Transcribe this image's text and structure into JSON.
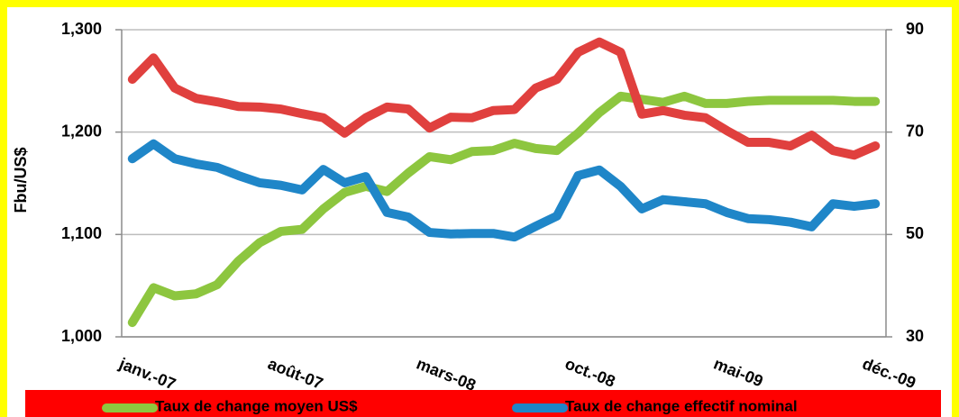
{
  "chart_data": {
    "type": "line",
    "y_label": "Fbu/US$",
    "categories": [
      "janv.-07",
      null,
      null,
      null,
      null,
      null,
      null,
      "août-07",
      null,
      null,
      null,
      null,
      null,
      null,
      "mars-08",
      null,
      null,
      null,
      null,
      null,
      null,
      "oct.-08",
      null,
      null,
      null,
      null,
      null,
      null,
      "mai-09",
      null,
      null,
      null,
      null,
      null,
      null,
      "déc.-09"
    ],
    "series": [
      {
        "name": "Taux de change moyen US$",
        "color": "#8dc63f",
        "axis": "y",
        "values": [
          1014,
          1048,
          1040,
          1042,
          1051,
          1074,
          1092,
          1103,
          1105,
          1125,
          1141,
          1147,
          1142,
          1160,
          1176,
          1173,
          1181,
          1182,
          1189,
          1184,
          1182,
          1199,
          1219,
          1235,
          1232,
          1229,
          1235,
          1228,
          1228,
          1230,
          1231,
          1231,
          1231,
          1231,
          1230,
          1230
        ]
      },
      {
        "name": "Taux de change effectif nominal",
        "color": "#1f86c8",
        "axis": "y2",
        "values": [
          64.8,
          67.7,
          64.8,
          63.8,
          63.1,
          61.5,
          60.1,
          59.6,
          58.7,
          62.7,
          60.1,
          61.3,
          54.3,
          53.4,
          50.4,
          50.1,
          50.2,
          50.2,
          49.5,
          51.6,
          53.6,
          61.5,
          62.6,
          59.4,
          55.0,
          56.8,
          56.4,
          56.0,
          54.3,
          53.1,
          52.9,
          52.4,
          51.5,
          56.0,
          55.5,
          56.0
        ]
      },
      {
        "color": "#e0403e",
        "axis": "y2",
        "values": [
          80.3,
          84.5,
          78.6,
          76.6,
          75.9,
          75.0,
          74.9,
          74.5,
          73.6,
          72.8,
          69.8,
          72.8,
          74.9,
          74.5,
          70.8,
          72.9,
          72.8,
          74.2,
          74.4,
          78.6,
          80.3,
          85.6,
          87.6,
          85.6,
          73.5,
          74.2,
          73.3,
          72.8,
          70.3,
          68.0,
          68.0,
          67.3,
          69.4,
          66.4,
          65.5,
          67.3
        ]
      }
    ],
    "ylim": [
      1000,
      1300
    ],
    "yticks": [
      {
        "value": 1000,
        "label": "1,000"
      },
      {
        "value": 1100,
        "label": "1,100"
      },
      {
        "value": 1200,
        "label": "1,200"
      },
      {
        "value": 1300,
        "label": "1,300"
      }
    ],
    "y2lim": [
      30,
      90
    ],
    "y2ticks": [
      30,
      50,
      70,
      90
    ],
    "grid": true,
    "legend": "bottom"
  }
}
